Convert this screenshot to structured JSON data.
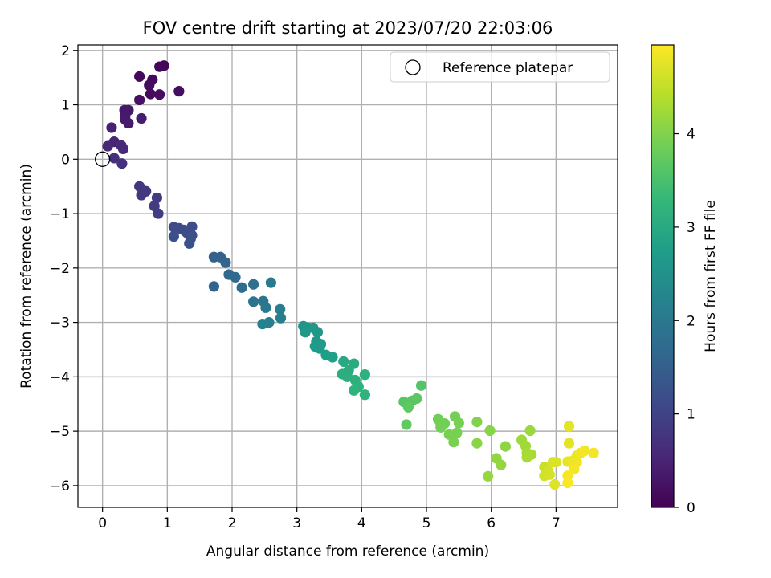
{
  "chart_data": {
    "type": "scatter",
    "title": "FOV centre drift starting at 2023/07/20 22:03:06",
    "xlabel": "Angular distance from reference (arcmin)",
    "ylabel": "Rotation from reference (arcmin)",
    "xlim": [
      -0.38,
      7.95
    ],
    "ylim": [
      -6.4,
      2.1
    ],
    "xticks": [
      0,
      1,
      2,
      3,
      4,
      5,
      6,
      7
    ],
    "yticks": [
      2,
      1,
      0,
      -1,
      -2,
      -3,
      -4,
      -5,
      -6
    ],
    "grid": true,
    "legend": {
      "position": "top-right",
      "entries": [
        "Reference platepar"
      ]
    },
    "reference_point": {
      "x": 0,
      "y": 0
    },
    "colorbar": {
      "label": "Hours from first FF file",
      "colormap": "viridis",
      "range": [
        0,
        4.95
      ],
      "ticks": [
        0,
        1,
        2,
        3,
        4
      ]
    },
    "colormap_stops": [
      "#440154",
      "#482878",
      "#3e4989",
      "#31688e",
      "#26828e",
      "#1f9e89",
      "#35b779",
      "#6ece58",
      "#b5de2b",
      "#fde725"
    ],
    "points": [
      {
        "x": 0.95,
        "y": 1.72,
        "h": 0.05
      },
      {
        "x": 0.88,
        "y": 1.7,
        "h": 0.07
      },
      {
        "x": 0.57,
        "y": 1.52,
        "h": 0.1
      },
      {
        "x": 0.77,
        "y": 1.46,
        "h": 0.12
      },
      {
        "x": 0.72,
        "y": 1.36,
        "h": 0.14
      },
      {
        "x": 0.74,
        "y": 1.2,
        "h": 0.16
      },
      {
        "x": 0.88,
        "y": 1.19,
        "h": 0.18
      },
      {
        "x": 1.18,
        "y": 1.25,
        "h": 0.2
      },
      {
        "x": 0.57,
        "y": 1.09,
        "h": 0.22
      },
      {
        "x": 0.34,
        "y": 0.9,
        "h": 0.3
      },
      {
        "x": 0.4,
        "y": 0.9,
        "h": 0.32
      },
      {
        "x": 0.35,
        "y": 0.8,
        "h": 0.34
      },
      {
        "x": 0.35,
        "y": 0.73,
        "h": 0.36
      },
      {
        "x": 0.4,
        "y": 0.66,
        "h": 0.38
      },
      {
        "x": 0.6,
        "y": 0.75,
        "h": 0.4
      },
      {
        "x": 0.14,
        "y": 0.58,
        "h": 0.46
      },
      {
        "x": 0.18,
        "y": 0.32,
        "h": 0.52
      },
      {
        "x": 0.08,
        "y": 0.24,
        "h": 0.56
      },
      {
        "x": 0.29,
        "y": 0.25,
        "h": 0.58
      },
      {
        "x": 0.32,
        "y": 0.19,
        "h": 0.6
      },
      {
        "x": 0.18,
        "y": 0.02,
        "h": 0.66
      },
      {
        "x": 0.3,
        "y": -0.08,
        "h": 0.7
      },
      {
        "x": 0.57,
        "y": -0.5,
        "h": 0.8
      },
      {
        "x": 0.67,
        "y": -0.59,
        "h": 0.82
      },
      {
        "x": 0.6,
        "y": -0.66,
        "h": 0.84
      },
      {
        "x": 0.84,
        "y": -0.71,
        "h": 0.86
      },
      {
        "x": 0.8,
        "y": -0.86,
        "h": 0.88
      },
      {
        "x": 0.86,
        "y": -1.0,
        "h": 0.9
      },
      {
        "x": 1.1,
        "y": -1.25,
        "h": 1.1
      },
      {
        "x": 1.18,
        "y": -1.27,
        "h": 1.12
      },
      {
        "x": 1.25,
        "y": -1.3,
        "h": 1.14
      },
      {
        "x": 1.38,
        "y": -1.24,
        "h": 1.16
      },
      {
        "x": 1.3,
        "y": -1.35,
        "h": 1.18
      },
      {
        "x": 1.38,
        "y": -1.4,
        "h": 1.2
      },
      {
        "x": 1.1,
        "y": -1.42,
        "h": 1.22
      },
      {
        "x": 1.36,
        "y": -1.46,
        "h": 1.24
      },
      {
        "x": 1.34,
        "y": -1.55,
        "h": 1.26
      },
      {
        "x": 1.72,
        "y": -1.8,
        "h": 1.5
      },
      {
        "x": 1.82,
        "y": -1.8,
        "h": 1.54
      },
      {
        "x": 1.9,
        "y": -1.9,
        "h": 1.58
      },
      {
        "x": 1.72,
        "y": -2.34,
        "h": 1.6
      },
      {
        "x": 1.95,
        "y": -2.12,
        "h": 1.66
      },
      {
        "x": 2.05,
        "y": -2.17,
        "h": 1.7
      },
      {
        "x": 2.15,
        "y": -2.36,
        "h": 1.76
      },
      {
        "x": 2.33,
        "y": -2.3,
        "h": 1.82
      },
      {
        "x": 2.33,
        "y": -2.62,
        "h": 1.88
      },
      {
        "x": 2.48,
        "y": -2.61,
        "h": 1.94
      },
      {
        "x": 2.52,
        "y": -2.73,
        "h": 1.98
      },
      {
        "x": 2.6,
        "y": -2.27,
        "h": 2.0
      },
      {
        "x": 2.74,
        "y": -2.76,
        "h": 2.1
      },
      {
        "x": 2.75,
        "y": -2.92,
        "h": 2.14
      },
      {
        "x": 2.57,
        "y": -3.0,
        "h": 2.16
      },
      {
        "x": 2.47,
        "y": -3.03,
        "h": 2.18
      },
      {
        "x": 3.1,
        "y": -3.07,
        "h": 2.55
      },
      {
        "x": 3.18,
        "y": -3.1,
        "h": 2.58
      },
      {
        "x": 3.25,
        "y": -3.1,
        "h": 2.6
      },
      {
        "x": 3.32,
        "y": -3.18,
        "h": 2.62
      },
      {
        "x": 3.13,
        "y": -3.18,
        "h": 2.64
      },
      {
        "x": 3.3,
        "y": -3.35,
        "h": 2.66
      },
      {
        "x": 3.37,
        "y": -3.4,
        "h": 2.68
      },
      {
        "x": 3.28,
        "y": -3.44,
        "h": 2.7
      },
      {
        "x": 3.35,
        "y": -3.48,
        "h": 2.72
      },
      {
        "x": 3.45,
        "y": -3.6,
        "h": 2.76
      },
      {
        "x": 3.55,
        "y": -3.64,
        "h": 2.8
      },
      {
        "x": 3.72,
        "y": -3.72,
        "h": 3.0
      },
      {
        "x": 3.88,
        "y": -3.76,
        "h": 3.04
      },
      {
        "x": 3.8,
        "y": -3.88,
        "h": 3.06
      },
      {
        "x": 3.7,
        "y": -3.95,
        "h": 3.08
      },
      {
        "x": 3.78,
        "y": -4.0,
        "h": 3.1
      },
      {
        "x": 3.9,
        "y": -4.06,
        "h": 3.12
      },
      {
        "x": 4.05,
        "y": -3.96,
        "h": 3.14
      },
      {
        "x": 3.95,
        "y": -4.18,
        "h": 3.16
      },
      {
        "x": 3.88,
        "y": -4.25,
        "h": 3.18
      },
      {
        "x": 4.05,
        "y": -4.33,
        "h": 3.2
      },
      {
        "x": 4.92,
        "y": -4.16,
        "h": 3.6
      },
      {
        "x": 4.65,
        "y": -4.46,
        "h": 3.64
      },
      {
        "x": 4.78,
        "y": -4.44,
        "h": 3.66
      },
      {
        "x": 4.85,
        "y": -4.4,
        "h": 3.68
      },
      {
        "x": 4.72,
        "y": -4.56,
        "h": 3.7
      },
      {
        "x": 4.69,
        "y": -4.88,
        "h": 3.72
      },
      {
        "x": 5.18,
        "y": -4.78,
        "h": 3.85
      },
      {
        "x": 5.22,
        "y": -4.86,
        "h": 3.87
      },
      {
        "x": 5.28,
        "y": -4.86,
        "h": 3.88
      },
      {
        "x": 5.22,
        "y": -4.93,
        "h": 3.89
      },
      {
        "x": 5.44,
        "y": -4.73,
        "h": 3.9
      },
      {
        "x": 5.5,
        "y": -4.85,
        "h": 3.91
      },
      {
        "x": 5.35,
        "y": -5.06,
        "h": 3.92
      },
      {
        "x": 5.47,
        "y": -5.03,
        "h": 3.93
      },
      {
        "x": 5.42,
        "y": -5.2,
        "h": 3.94
      },
      {
        "x": 5.78,
        "y": -4.83,
        "h": 4.0
      },
      {
        "x": 5.98,
        "y": -4.99,
        "h": 4.05
      },
      {
        "x": 5.78,
        "y": -5.22,
        "h": 4.07
      },
      {
        "x": 6.22,
        "y": -5.28,
        "h": 4.1
      },
      {
        "x": 6.08,
        "y": -5.5,
        "h": 4.12
      },
      {
        "x": 6.15,
        "y": -5.62,
        "h": 4.14
      },
      {
        "x": 5.95,
        "y": -5.83,
        "h": 4.16
      },
      {
        "x": 6.6,
        "y": -4.99,
        "h": 4.2
      },
      {
        "x": 6.47,
        "y": -5.16,
        "h": 4.22
      },
      {
        "x": 6.53,
        "y": -5.27,
        "h": 4.24
      },
      {
        "x": 6.55,
        "y": -5.4,
        "h": 4.26
      },
      {
        "x": 6.62,
        "y": -5.43,
        "h": 4.28
      },
      {
        "x": 6.55,
        "y": -5.48,
        "h": 4.3
      },
      {
        "x": 6.82,
        "y": -5.66,
        "h": 4.55
      },
      {
        "x": 6.88,
        "y": -5.74,
        "h": 4.6
      },
      {
        "x": 6.82,
        "y": -5.82,
        "h": 4.62
      },
      {
        "x": 6.9,
        "y": -5.8,
        "h": 4.64
      },
      {
        "x": 6.95,
        "y": -5.57,
        "h": 4.66
      },
      {
        "x": 7.0,
        "y": -5.57,
        "h": 4.68
      },
      {
        "x": 6.98,
        "y": -5.98,
        "h": 4.7
      },
      {
        "x": 7.2,
        "y": -4.91,
        "h": 4.75
      },
      {
        "x": 7.2,
        "y": -5.22,
        "h": 4.76
      },
      {
        "x": 7.18,
        "y": -5.56,
        "h": 4.78
      },
      {
        "x": 7.25,
        "y": -5.55,
        "h": 4.8
      },
      {
        "x": 7.32,
        "y": -5.45,
        "h": 4.82
      },
      {
        "x": 7.28,
        "y": -5.6,
        "h": 4.84
      },
      {
        "x": 7.32,
        "y": -5.57,
        "h": 4.85
      },
      {
        "x": 7.38,
        "y": -5.4,
        "h": 4.86
      },
      {
        "x": 7.44,
        "y": -5.36,
        "h": 4.87
      },
      {
        "x": 7.58,
        "y": -5.4,
        "h": 4.88
      },
      {
        "x": 7.28,
        "y": -5.7,
        "h": 4.89
      },
      {
        "x": 7.18,
        "y": -5.82,
        "h": 4.9
      },
      {
        "x": 7.18,
        "y": -5.95,
        "h": 4.92
      }
    ]
  }
}
